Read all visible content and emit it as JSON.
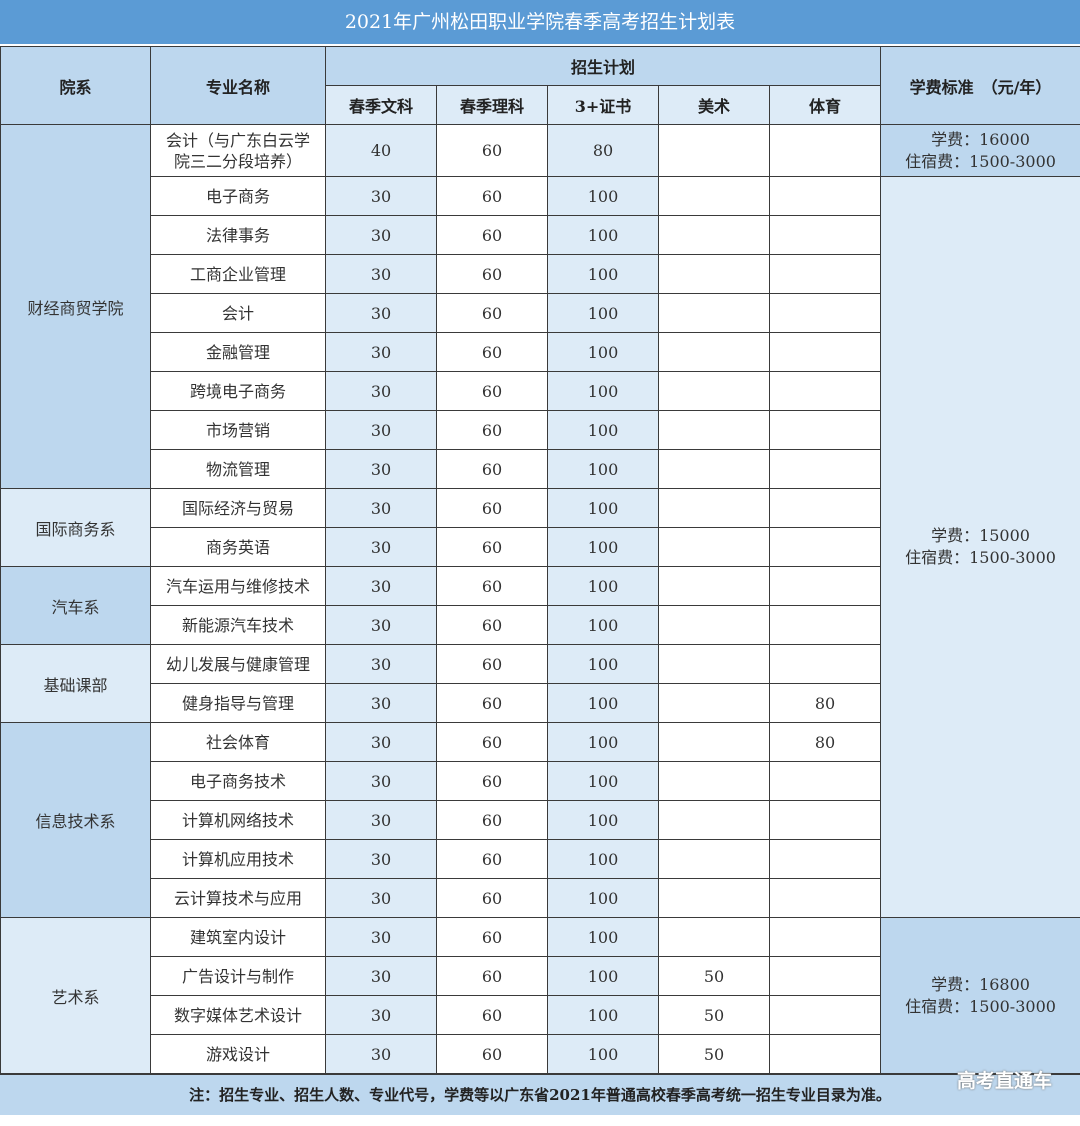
{
  "title": "2021年广州松田职业学院春季高考招生计划表",
  "headers": {
    "department": "院系",
    "major": "专业名称",
    "plan": "招生计划",
    "plan_cols": [
      "春季文科",
      "春季理科",
      "3+证书",
      "美术",
      "体育"
    ],
    "fee": "学费标准　（元/年）"
  },
  "departments": [
    {
      "name": "财经商贸学院",
      "majors": [
        {
          "name": "会计（与广东白云学院三二分段培养）",
          "values": [
            "40",
            "60",
            "80",
            "",
            ""
          ]
        },
        {
          "name": "电子商务",
          "values": [
            "30",
            "60",
            "100",
            "",
            ""
          ]
        },
        {
          "name": "法律事务",
          "values": [
            "30",
            "60",
            "100",
            "",
            ""
          ]
        },
        {
          "name": "工商企业管理",
          "values": [
            "30",
            "60",
            "100",
            "",
            ""
          ]
        },
        {
          "name": "会计",
          "values": [
            "30",
            "60",
            "100",
            "",
            ""
          ]
        },
        {
          "name": "金融管理",
          "values": [
            "30",
            "60",
            "100",
            "",
            ""
          ]
        },
        {
          "name": "跨境电子商务",
          "values": [
            "30",
            "60",
            "100",
            "",
            ""
          ]
        },
        {
          "name": "市场营销",
          "values": [
            "30",
            "60",
            "100",
            "",
            ""
          ]
        },
        {
          "name": "物流管理",
          "values": [
            "30",
            "60",
            "100",
            "",
            ""
          ]
        }
      ]
    },
    {
      "name": "国际商务系",
      "majors": [
        {
          "name": "国际经济与贸易",
          "values": [
            "30",
            "60",
            "100",
            "",
            ""
          ]
        },
        {
          "name": "商务英语",
          "values": [
            "30",
            "60",
            "100",
            "",
            ""
          ]
        }
      ]
    },
    {
      "name": "汽车系",
      "majors": [
        {
          "name": "汽车运用与维修技术",
          "values": [
            "30",
            "60",
            "100",
            "",
            ""
          ]
        },
        {
          "name": "新能源汽车技术",
          "values": [
            "30",
            "60",
            "100",
            "",
            ""
          ]
        }
      ]
    },
    {
      "name": "基础课部",
      "majors": [
        {
          "name": "幼儿发展与健康管理",
          "values": [
            "30",
            "60",
            "100",
            "",
            ""
          ]
        },
        {
          "name": "健身指导与管理",
          "values": [
            "30",
            "60",
            "100",
            "",
            "80"
          ]
        }
      ]
    },
    {
      "name": "信息技术系",
      "majors": [
        {
          "name": "社会体育",
          "values": [
            "30",
            "60",
            "100",
            "",
            "80"
          ]
        },
        {
          "name": "电子商务技术",
          "values": [
            "30",
            "60",
            "100",
            "",
            ""
          ]
        },
        {
          "name": "计算机网络技术",
          "values": [
            "30",
            "60",
            "100",
            "",
            ""
          ]
        },
        {
          "name": "计算机应用技术",
          "values": [
            "30",
            "60",
            "100",
            "",
            ""
          ]
        },
        {
          "name": "云计算技术与应用",
          "values": [
            "30",
            "60",
            "100",
            "",
            ""
          ]
        }
      ]
    },
    {
      "name": "艺术系",
      "majors": [
        {
          "name": "建筑室内设计",
          "values": [
            "30",
            "60",
            "100",
            "",
            ""
          ]
        },
        {
          "name": "广告设计与制作",
          "values": [
            "30",
            "60",
            "100",
            "50",
            ""
          ]
        },
        {
          "name": "数字媒体艺术设计",
          "values": [
            "30",
            "60",
            "100",
            "50",
            ""
          ]
        },
        {
          "name": "游戏设计",
          "values": [
            "30",
            "60",
            "100",
            "50",
            ""
          ]
        }
      ]
    }
  ],
  "fees": [
    {
      "tuition": "学费：16000",
      "lodging": "住宿费：1500-3000",
      "rows": 1
    },
    {
      "tuition": "学费：15000",
      "lodging": "住宿费：1500-3000",
      "rows": 19
    },
    {
      "tuition": "学费：16800",
      "lodging": "住宿费：1500-3000",
      "rows": 4
    }
  ],
  "note": "注：招生专业、招生人数、专业代号，学费等以广东省2021年普通高校春季高考统一招生专业目录为准。",
  "watermark": "高考直通车",
  "colors": {
    "title_bar": "#5b9bd5",
    "header": "#bdd7ee",
    "light": "#ddebf7"
  }
}
